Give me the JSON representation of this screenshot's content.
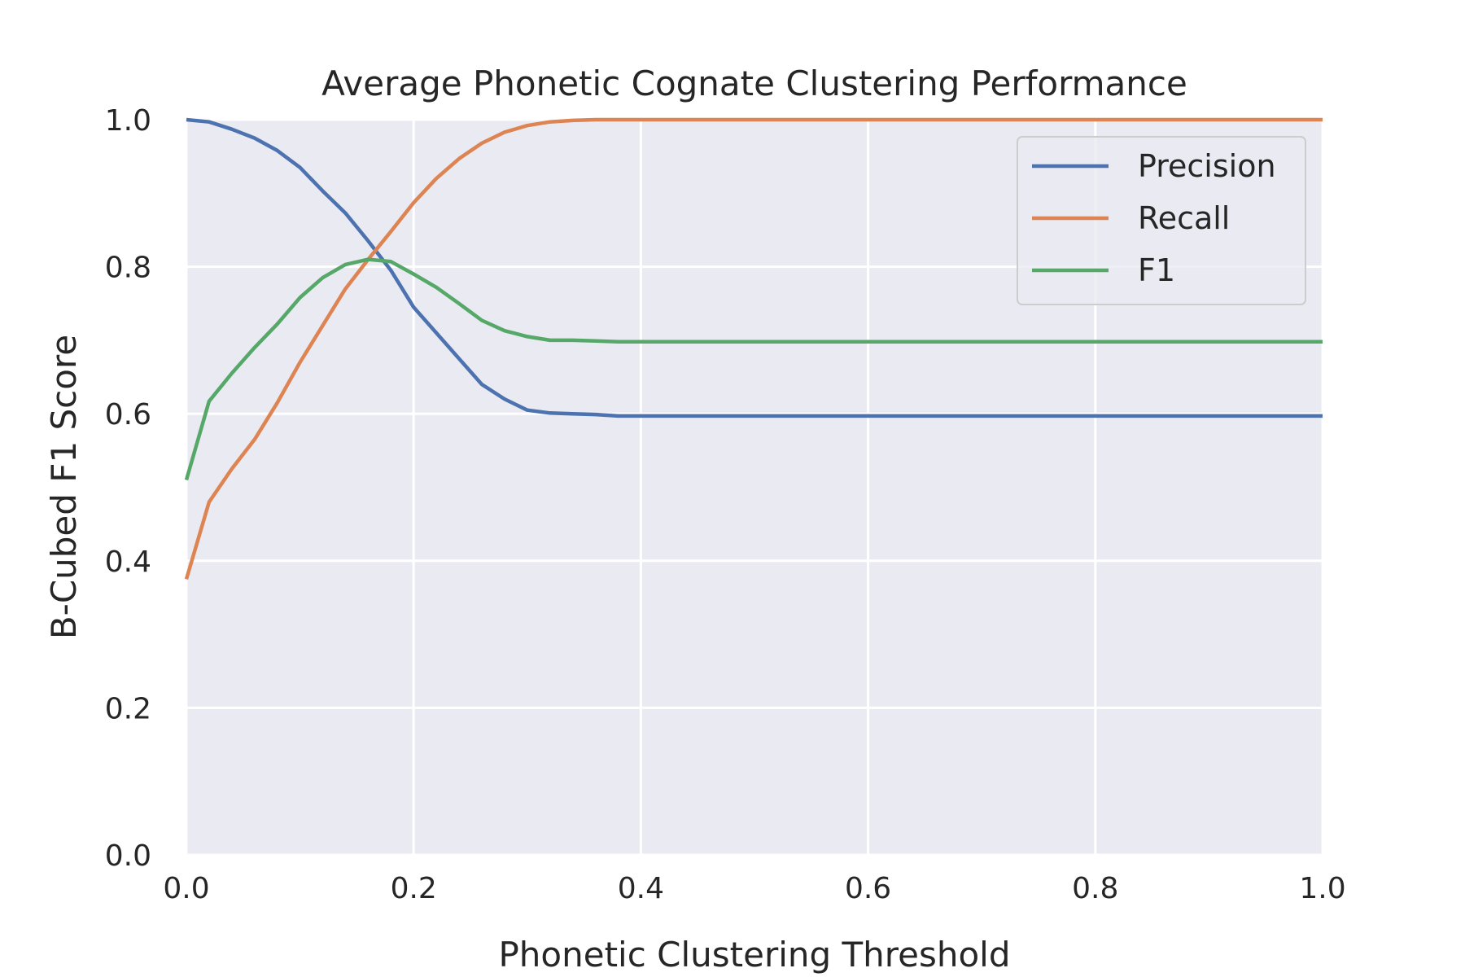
{
  "chart_data": {
    "type": "line",
    "title": "Average Phonetic Cognate Clustering Performance",
    "xlabel": "Phonetic Clustering Threshold",
    "ylabel": "B-Cubed F1 Score",
    "xlim": [
      0.0,
      1.0
    ],
    "ylim": [
      0.0,
      1.0
    ],
    "xticks": [
      "0.0",
      "0.2",
      "0.4",
      "0.6",
      "0.8",
      "1.0"
    ],
    "yticks": [
      "0.0",
      "0.2",
      "0.4",
      "0.6",
      "0.8",
      "1.0"
    ],
    "grid": true,
    "legend_position": "top-right",
    "colors": {
      "background": "#eaeaf2",
      "grid": "#ffffff",
      "legend_frame": "#cccccc"
    },
    "x": [
      0.0,
      0.02,
      0.04,
      0.06,
      0.08,
      0.1,
      0.12,
      0.14,
      0.16,
      0.18,
      0.2,
      0.22,
      0.24,
      0.26,
      0.28,
      0.3,
      0.32,
      0.34,
      0.36,
      0.38,
      0.4,
      0.5,
      0.6,
      0.7,
      0.8,
      0.9,
      1.0
    ],
    "series": [
      {
        "name": "Precision",
        "color": "#4c72b0",
        "values": [
          1.0,
          0.997,
          0.987,
          0.975,
          0.958,
          0.935,
          0.903,
          0.873,
          0.835,
          0.795,
          0.745,
          0.71,
          0.675,
          0.64,
          0.62,
          0.605,
          0.601,
          0.6,
          0.599,
          0.597,
          0.597,
          0.597,
          0.597,
          0.597,
          0.597,
          0.597,
          0.597
        ]
      },
      {
        "name": "Recall",
        "color": "#dd8452",
        "values": [
          0.375,
          0.48,
          0.525,
          0.565,
          0.615,
          0.67,
          0.72,
          0.77,
          0.81,
          0.848,
          0.887,
          0.92,
          0.947,
          0.968,
          0.983,
          0.992,
          0.997,
          0.999,
          1.0,
          1.0,
          1.0,
          1.0,
          1.0,
          1.0,
          1.0,
          1.0,
          1.0
        ]
      },
      {
        "name": "F1",
        "color": "#55a868",
        "values": [
          0.51,
          0.617,
          0.655,
          0.69,
          0.722,
          0.758,
          0.785,
          0.803,
          0.81,
          0.807,
          0.79,
          0.772,
          0.75,
          0.727,
          0.713,
          0.705,
          0.7,
          0.7,
          0.699,
          0.698,
          0.698,
          0.698,
          0.698,
          0.698,
          0.698,
          0.698,
          0.698
        ]
      }
    ]
  }
}
